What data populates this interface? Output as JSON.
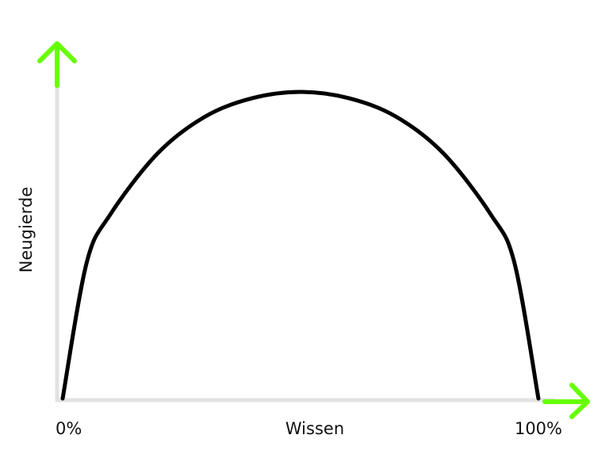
{
  "chart_data": {
    "type": "line",
    "xlabel": "Wissen",
    "ylabel": "Neugierde",
    "tick_labels": [
      "0%",
      "100%"
    ],
    "xlim": [
      0,
      100
    ],
    "ylim": [
      0,
      1
    ],
    "series": [
      {
        "x": [
          0,
          5,
          10,
          20,
          30,
          40,
          50,
          60,
          70,
          80,
          90,
          95,
          100
        ],
        "y": [
          0,
          0.44,
          0.6,
          0.8,
          0.92,
          0.98,
          1.0,
          0.98,
          0.92,
          0.8,
          0.6,
          0.44,
          0
        ],
        "color": "#000000"
      }
    ],
    "grid": false,
    "legend": "none",
    "axis_color": "#e2e2e2",
    "arrow_color": "#66ff00"
  }
}
